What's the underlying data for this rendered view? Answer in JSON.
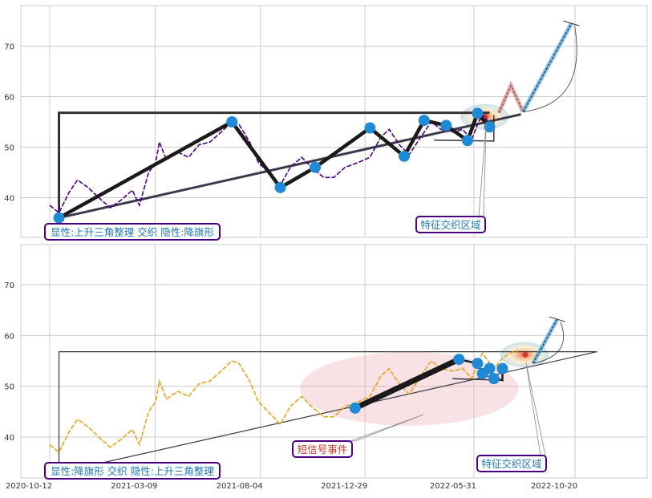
{
  "chart_data": [
    {
      "type": "line",
      "panel": "top",
      "style": "seaborn-whitegrid",
      "ylim": [
        32,
        78
      ],
      "yticks": [
        "40",
        "50",
        "60",
        "70"
      ],
      "grid": true,
      "series": [
        {
          "color": "#4b0082",
          "dashed": true,
          "points": [
            [
              "2020-10-12",
              38.5
            ],
            [
              "2020-10-25",
              37
            ],
            [
              "2020-11-08",
              41
            ],
            [
              "2020-11-20",
              43.5
            ],
            [
              "2020-12-05",
              42
            ],
            [
              "2020-12-20",
              40
            ],
            [
              "2021-01-05",
              38
            ],
            [
              "2021-01-20",
              39.5
            ],
            [
              "2021-02-05",
              41.5
            ],
            [
              "2021-02-15",
              38.5
            ],
            [
              "2021-02-28",
              45
            ],
            [
              "2021-03-10",
              47
            ],
            [
              "2021-03-15",
              51
            ],
            [
              "2021-03-25",
              47.5
            ],
            [
              "2021-04-10",
              49
            ],
            [
              "2021-04-25",
              48
            ],
            [
              "2021-05-10",
              50.5
            ],
            [
              "2021-05-25",
              51
            ],
            [
              "2021-06-10",
              53
            ],
            [
              "2021-06-25",
              55
            ],
            [
              "2021-07-05",
              54.5
            ],
            [
              "2021-07-20",
              51
            ],
            [
              "2021-08-01",
              47
            ],
            [
              "2021-08-15",
              45
            ],
            [
              "2021-09-01",
              42.5
            ],
            [
              "2021-09-15",
              46
            ],
            [
              "2021-10-01",
              48
            ],
            [
              "2021-10-15",
              46
            ],
            [
              "2021-11-01",
              44
            ],
            [
              "2021-11-15",
              44
            ],
            [
              "2021-12-01",
              46
            ],
            [
              "2021-12-20",
              47
            ],
            [
              "2022-01-05",
              48
            ],
            [
              "2022-01-20",
              52
            ],
            [
              "2022-02-01",
              53.5
            ],
            [
              "2022-02-15",
              50.5
            ],
            [
              "2022-03-01",
              48.5
            ],
            [
              "2022-03-15",
              51.5
            ],
            [
              "2022-04-01",
              55
            ],
            [
              "2022-04-15",
              53.5
            ],
            [
              "2022-05-01",
              53
            ],
            [
              "2022-05-15",
              53.5
            ],
            [
              "2022-05-28",
              51.5
            ],
            [
              "2022-06-05",
              54.5
            ],
            [
              "2022-06-12",
              56.5
            ],
            [
              "2022-06-20",
              55
            ],
            [
              "2022-06-28",
              53.5
            ]
          ]
        }
      ],
      "annotations": {
        "resistance": {
          "start": "2020-10-25",
          "end": "2022-06-22",
          "value": 56.8
        },
        "support": [
          [
            "2020-10-25",
            36
          ],
          [
            "2022-08-05",
            56.5
          ]
        ],
        "zigzag": [
          [
            "2020-10-25",
            36
          ],
          [
            "2021-06-25",
            55
          ],
          [
            "2021-09-01",
            42
          ],
          [
            "2021-10-20",
            46
          ],
          [
            "2022-01-05",
            53.8
          ],
          [
            "2022-02-22",
            48.2
          ],
          [
            "2022-03-22",
            55.3
          ],
          [
            "2022-04-22",
            54.3
          ],
          [
            "2022-05-22",
            51.3
          ],
          [
            "2022-06-05",
            56.7
          ],
          [
            "2022-06-22",
            54
          ]
        ],
        "flag": [
          [
            "2022-04-05",
            51.4
          ],
          [
            "2022-06-28",
            51.2
          ],
          [
            "2022-06-28",
            56.3
          ]
        ],
        "projection_red": [
          [
            "2022-07-05",
            56.8
          ],
          [
            "2022-07-22",
            62.2
          ],
          [
            "2022-08-08",
            57
          ]
        ],
        "projection_blue": [
          [
            "2022-08-08",
            57
          ],
          [
            "2022-10-15",
            74.5
          ]
        ],
        "feature_zone": {
          "date": "2022-06-15",
          "value": 56
        },
        "labels": [
          {
            "text": "显性:上升三角整理 交织 隐性:降旗形",
            "color": "#1f77b4",
            "border": "#4b0082"
          },
          {
            "text": "特征交织区域",
            "color": "#1f77b4",
            "border": "#4b0082"
          }
        ]
      }
    },
    {
      "type": "line",
      "panel": "bottom",
      "ylim": [
        32,
        78
      ],
      "yticks": [
        "40",
        "50",
        "60",
        "70"
      ],
      "xticks": [
        "2020-10-12",
        "2021-03-09",
        "2021-08-04",
        "2021-12-29",
        "2022-05-31",
        "2022-10-20"
      ],
      "grid": true,
      "series": [
        {
          "color": "#e8a317",
          "dashed": true,
          "points": [
            [
              "2020-10-12",
              38.5
            ],
            [
              "2020-10-25",
              37
            ],
            [
              "2020-11-08",
              41
            ],
            [
              "2020-11-20",
              43.5
            ],
            [
              "2020-12-05",
              42
            ],
            [
              "2020-12-20",
              40
            ],
            [
              "2021-01-05",
              38
            ],
            [
              "2021-01-20",
              39.5
            ],
            [
              "2021-02-05",
              41.5
            ],
            [
              "2021-02-15",
              38.5
            ],
            [
              "2021-02-28",
              45
            ],
            [
              "2021-03-10",
              47
            ],
            [
              "2021-03-15",
              51
            ],
            [
              "2021-03-25",
              47.5
            ],
            [
              "2021-04-10",
              49
            ],
            [
              "2021-04-25",
              48
            ],
            [
              "2021-05-10",
              50.5
            ],
            [
              "2021-05-25",
              51
            ],
            [
              "2021-06-10",
              53
            ],
            [
              "2021-06-25",
              55
            ],
            [
              "2021-07-05",
              54.5
            ],
            [
              "2021-07-20",
              51
            ],
            [
              "2021-08-01",
              47
            ],
            [
              "2021-08-15",
              45
            ],
            [
              "2021-09-01",
              42.5
            ],
            [
              "2021-09-15",
              46
            ],
            [
              "2021-10-01",
              48
            ],
            [
              "2021-10-15",
              46
            ],
            [
              "2021-11-01",
              44
            ],
            [
              "2021-11-15",
              44
            ],
            [
              "2021-12-01",
              46
            ],
            [
              "2021-12-20",
              47
            ],
            [
              "2022-01-05",
              48
            ],
            [
              "2022-01-20",
              52
            ],
            [
              "2022-02-01",
              53.5
            ],
            [
              "2022-02-15",
              50.5
            ],
            [
              "2022-03-01",
              48.5
            ],
            [
              "2022-03-15",
              51.5
            ],
            [
              "2022-04-01",
              55
            ],
            [
              "2022-04-15",
              53.5
            ],
            [
              "2022-05-01",
              53
            ],
            [
              "2022-05-15",
              53.5
            ],
            [
              "2022-05-28",
              51.5
            ],
            [
              "2022-06-05",
              54.5
            ],
            [
              "2022-06-12",
              56.5
            ],
            [
              "2022-06-20",
              55
            ],
            [
              "2022-06-28",
              53.5
            ],
            [
              "2022-07-10",
              55.5
            ],
            [
              "2022-07-20",
              56.5
            ],
            [
              "2022-08-01",
              57
            ]
          ]
        }
      ],
      "annotations": {
        "resistance": {
          "start": "2020-10-25",
          "end": "2022-11-20",
          "value": 56.8
        },
        "support": [
          [
            "2020-10-25",
            33
          ],
          [
            "2022-11-20",
            56.8
          ]
        ],
        "short_signal": [
          [
            "2021-12-15",
            45.7
          ],
          [
            "2022-05-10",
            55.3
          ]
        ],
        "flag_points": [
          [
            "2022-05-10",
            55.3
          ],
          [
            "2022-06-05",
            54.5
          ],
          [
            "2022-06-12",
            52.5
          ],
          [
            "2022-06-22",
            53.5
          ],
          [
            "2022-06-28",
            51.5
          ],
          [
            "2022-07-10",
            51.2
          ],
          [
            "2022-07-10",
            53.5
          ]
        ],
        "flag_line": [
          [
            "2022-05-01",
            51.5
          ],
          [
            "2022-07-10",
            51.2
          ]
        ],
        "projection_blue": [
          [
            "2022-08-22",
            54.5
          ],
          [
            "2022-09-25",
            63.2
          ]
        ],
        "event_ellipse": {
          "date": "2022-03-01",
          "value": 49.5
        },
        "feature_zone": {
          "date": "2022-08-10",
          "value": 56.2
        },
        "labels": [
          {
            "text": "显性:降旗形 交织 隐性:上升三角整理",
            "color": "#1f77b4",
            "border": "#4b0082"
          },
          {
            "text": "短信号事件",
            "color": "#c0392b",
            "border": "#4b0082"
          },
          {
            "text": "特征交织区域",
            "color": "#1f77b4",
            "border": "#4b0082"
          }
        ]
      }
    }
  ]
}
